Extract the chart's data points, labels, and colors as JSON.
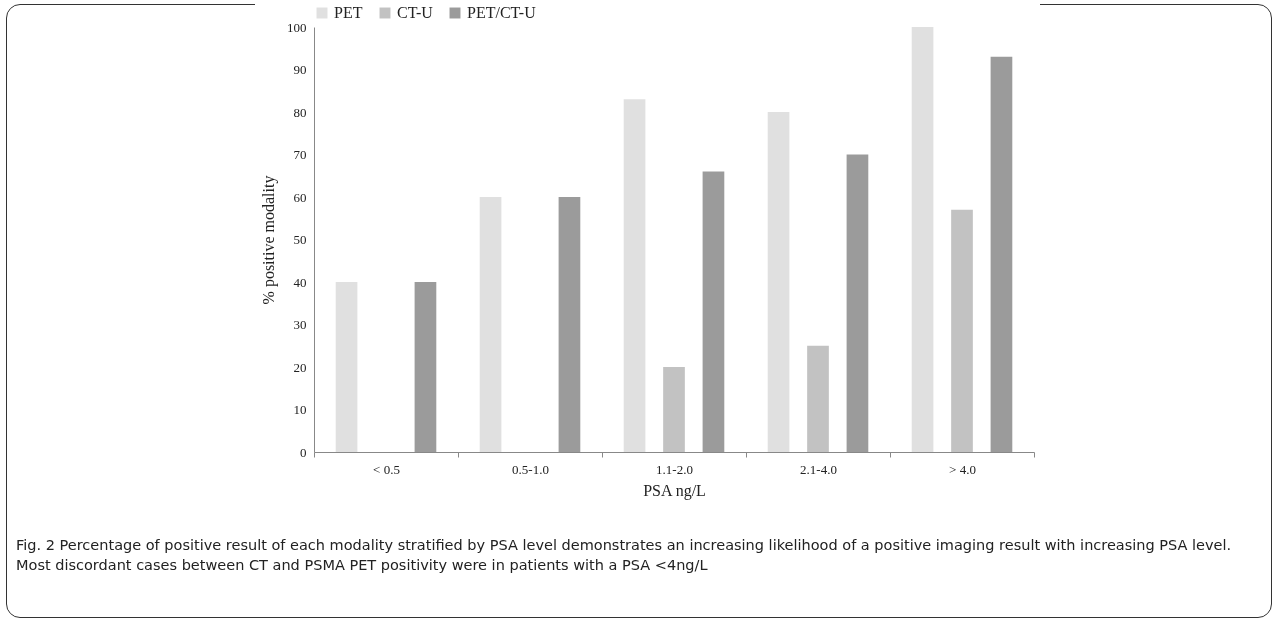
{
  "chart_data": {
    "type": "bar",
    "xlabel": "PSA ng/L",
    "ylabel": "% positive modality",
    "categories": [
      "< 0.5",
      "0.5-1.0",
      "1.1-2.0",
      "2.1-4.0",
      "> 4.0"
    ],
    "series": [
      {
        "name": "PET",
        "color": "#e0e0e0",
        "values": [
          40,
          60,
          83,
          80,
          100
        ]
      },
      {
        "name": "CT-U",
        "color": "#c2c2c2",
        "values": [
          0,
          0,
          20,
          25,
          57
        ]
      },
      {
        "name": "PET/CT-U",
        "color": "#9b9b9b",
        "values": [
          40,
          60,
          66,
          70,
          93
        ]
      }
    ],
    "ylim": [
      0,
      100
    ],
    "yticks": [
      0,
      10,
      20,
      30,
      40,
      50,
      60,
      70,
      80,
      90,
      100
    ],
    "grid": false,
    "legend": "top",
    "annotations": [
      "Fig. 2 Percentage of positive result of each modality stratified by PSA level demonstrates an increasing likelihood of a positive imaging result with increasing PSA level. Most discordant cases between CT and PSMA PET positivity were in patients with a PSA <4ng/L"
    ]
  }
}
